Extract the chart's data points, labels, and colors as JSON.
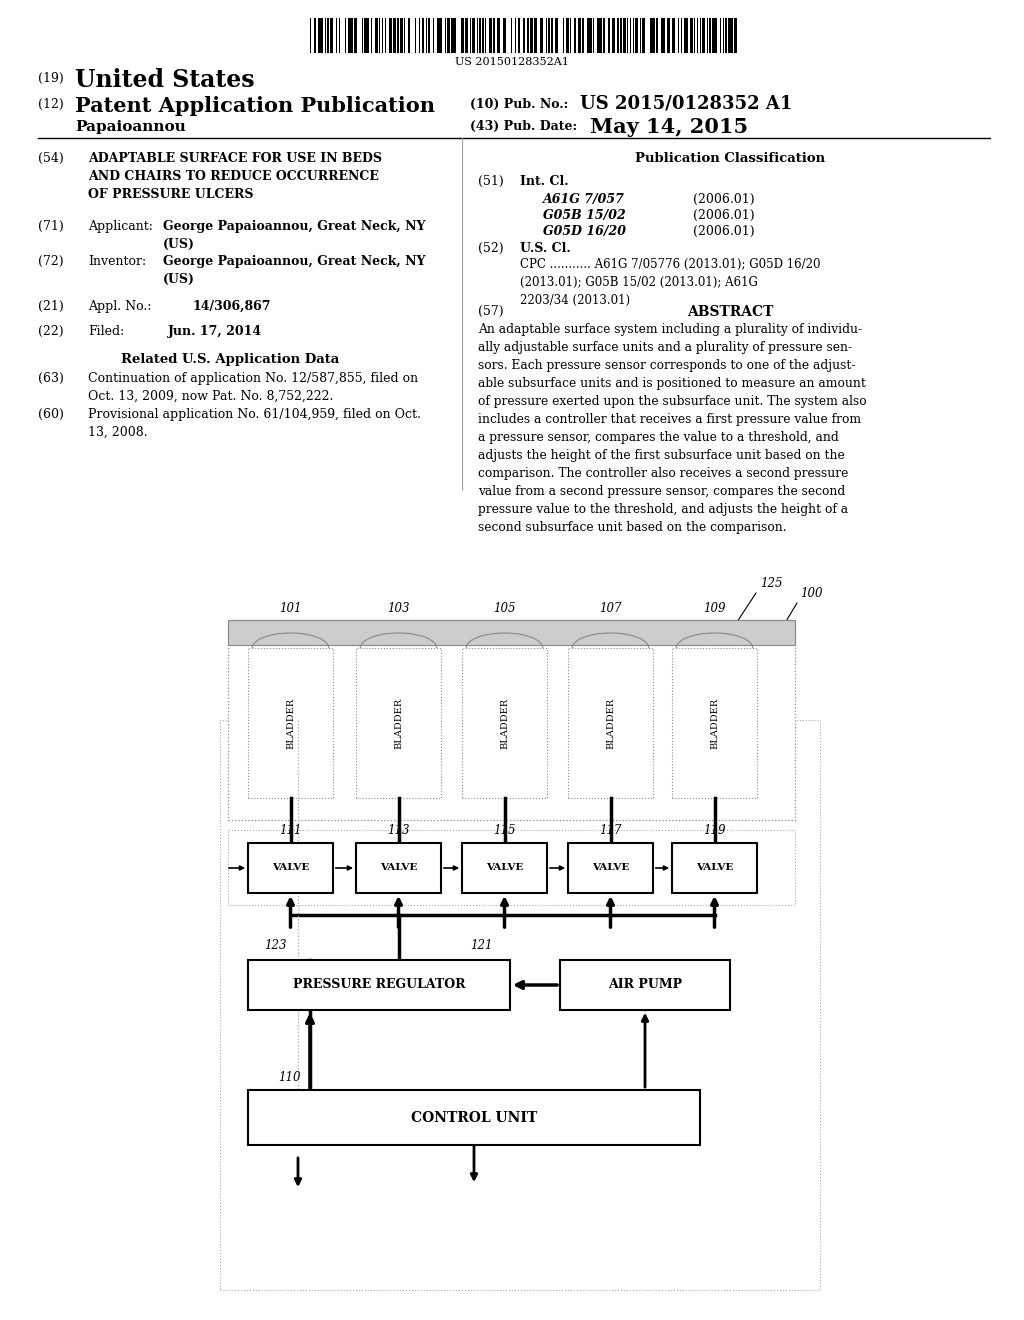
{
  "bg_color": "#ffffff",
  "barcode_text": "US 20150128352A1",
  "abstract_text": "An adaptable surface system including a plurality of individu-\nally adjustable surface units and a plurality of pressure sen-\nsors. Each pressure sensor corresponds to one of the adjust-\nable subsurface units and is positioned to measure an amount\nof pressure exerted upon the subsurface unit. The system also\nincludes a controller that receives a first pressure value from\na pressure sensor, compares the value to a threshold, and\nadjusts the height of the first subsurface unit based on the\ncomparison. The controller also receives a second pressure\nvalue from a second pressure sensor, compares the second\npressure value to the threshold, and adjusts the height of a\nsecond subsurface unit based on the comparison.",
  "cpc_text": "CPC ........... A61G 7/05776 (2013.01); G05D 16/20\n(2013.01); G05B 15/02 (2013.01); A61G\n2203/34 (2013.01)"
}
